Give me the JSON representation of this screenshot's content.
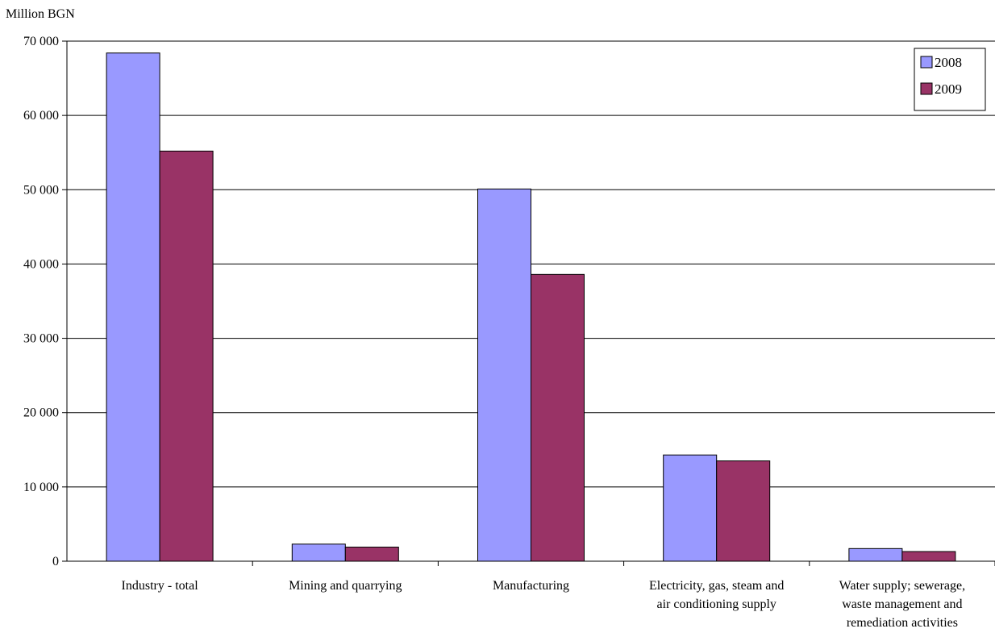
{
  "chart_data": {
    "type": "bar",
    "title": "",
    "ylabel": "Million BGN",
    "xlabel": "",
    "ylim": [
      0,
      70000
    ],
    "yticks": [
      0,
      10000,
      20000,
      30000,
      40000,
      50000,
      60000,
      70000
    ],
    "ytick_labels": [
      "0",
      "10 000",
      "20 000",
      "30 000",
      "40 000",
      "50 000",
      "60 000",
      "70 000"
    ],
    "categories": [
      [
        "Industry - total"
      ],
      [
        "Mining and quarrying"
      ],
      [
        "Manufacturing"
      ],
      [
        "Electricity, gas, steam and",
        "air conditioning supply"
      ],
      [
        "Water supply; sewerage,",
        "waste management and",
        "remediation activities"
      ]
    ],
    "series": [
      {
        "name": "2008",
        "color": "#9999ff",
        "values": [
          68400,
          2300,
          50100,
          14300,
          1700
        ]
      },
      {
        "name": "2009",
        "color": "#993366",
        "values": [
          55200,
          1900,
          38600,
          13500,
          1300
        ]
      }
    ],
    "grid": true,
    "legend_position": "top-right"
  }
}
